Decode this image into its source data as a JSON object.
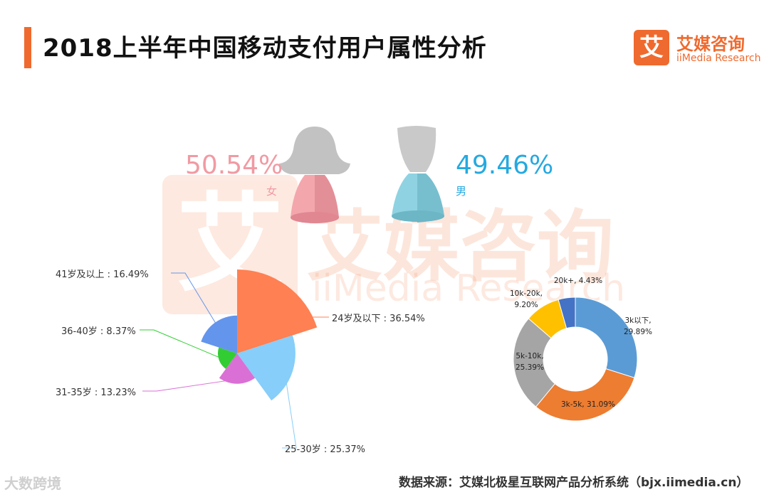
{
  "header": {
    "title": "2018上半年中国移动支付用户属性分析",
    "logo_mark": "艾",
    "logo_cn": "艾媒咨询",
    "logo_en": "iiMedia Research"
  },
  "watermark": {
    "mark": "艾",
    "cn": "艾媒咨询",
    "en": "iiMedia Research"
  },
  "gender": {
    "female": {
      "pct": "50.54%",
      "label": "女",
      "color": "#f19aa3"
    },
    "male": {
      "pct": "49.46%",
      "label": "男",
      "color": "#25a9e0"
    }
  },
  "footer": {
    "source": "数据来源：艾媒北极星互联网产品分析系统（bjx.iimedia.cn）",
    "brand": "大数跨境"
  },
  "chart_data": [
    {
      "type": "pie",
      "variant": "rose",
      "labels": [
        "24岁及以下 : 36.54%",
        "25-30岁 : 25.37%",
        "31-35岁 : 13.23%",
        "36-40岁 : 8.37%",
        "41岁及以上 : 16.49%"
      ],
      "categories": [
        "24岁及以下",
        "25-30岁",
        "31-35岁",
        "36-40岁",
        "41岁及以上"
      ],
      "values": [
        36.54,
        25.37,
        13.23,
        8.37,
        16.49
      ],
      "colors": [
        "#ff8052",
        "#87cefa",
        "#da70d6",
        "#32cd32",
        "#6495ed"
      ]
    },
    {
      "type": "pie",
      "variant": "donut",
      "labels": [
        [
          "3k以下,",
          "29.89%"
        ],
        [
          "3k-5k, 31.09%"
        ],
        [
          "5k-10k,",
          "25.39%"
        ],
        [
          "10k-20k,",
          "9.20%"
        ],
        [
          "20k+, 4.43%"
        ]
      ],
      "categories": [
        "3k以下",
        "3k-5k",
        "5k-10k",
        "10k-20k",
        "20k+"
      ],
      "values": [
        29.89,
        31.09,
        25.39,
        9.2,
        4.43
      ],
      "colors": [
        "#5b9bd5",
        "#ed7d31",
        "#a5a5a5",
        "#ffc000",
        "#4472c4"
      ]
    }
  ]
}
